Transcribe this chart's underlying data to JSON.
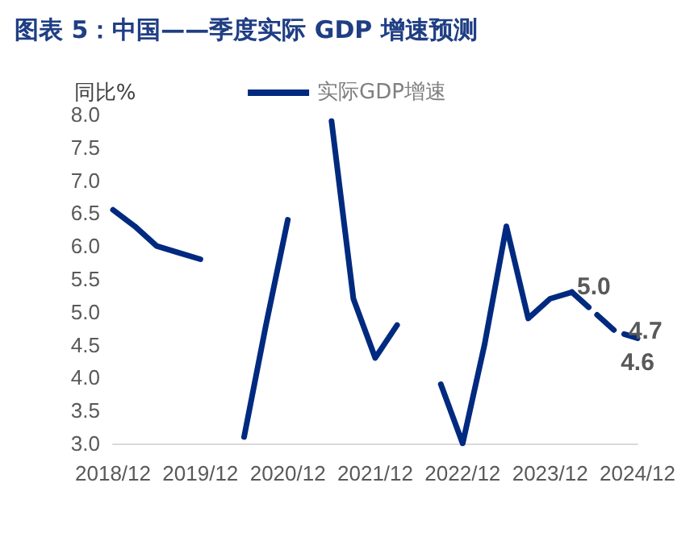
{
  "chart_data": {
    "type": "line",
    "title": "图表 5：中国——季度实际 GDP 增速预测",
    "ylabel": "同比%",
    "categories": [
      "2018/12",
      null,
      null,
      null,
      "2019/12",
      null,
      null,
      null,
      "2020/12",
      null,
      null,
      null,
      "2021/12",
      null,
      null,
      null,
      "2022/12",
      null,
      null,
      null,
      "2023/12",
      null,
      null,
      null,
      "2024/12"
    ],
    "series": [
      {
        "name": "实际GDP增速",
        "color": "#002a7f",
        "line_style": "solid",
        "values": [
          6.55,
          6.3,
          6.0,
          5.9,
          5.8,
          null,
          3.1,
          4.8,
          6.4,
          null,
          7.9,
          5.2,
          4.3,
          4.8,
          null,
          3.9,
          3.0,
          4.5,
          6.3,
          4.9,
          5.2,
          5.3,
          null,
          null,
          null
        ]
      },
      {
        "color": "#002a7f",
        "line_style": "dashed",
        "values": [
          null,
          null,
          null,
          null,
          null,
          null,
          null,
          null,
          null,
          null,
          null,
          null,
          null,
          null,
          null,
          null,
          null,
          null,
          null,
          null,
          null,
          5.3,
          5.0,
          4.7,
          4.6
        ],
        "value_labels": [
          null,
          null,
          null,
          null,
          null,
          null,
          null,
          null,
          null,
          null,
          null,
          null,
          null,
          null,
          null,
          null,
          null,
          null,
          null,
          null,
          null,
          null,
          "5.0",
          "4.7",
          "4.6"
        ]
      }
    ],
    "ylim": [
      3.0,
      8.0
    ],
    "yticks": [
      {
        "value": 3.0,
        "label": "3.0"
      },
      {
        "value": 3.5,
        "label": "3.5"
      },
      {
        "value": 4.0,
        "label": "4.0"
      },
      {
        "value": 4.5,
        "label": "4.5"
      },
      {
        "value": 5.0,
        "label": "5.0"
      },
      {
        "value": 5.5,
        "label": "5.5"
      },
      {
        "value": 6.0,
        "label": "6.0"
      },
      {
        "value": 6.5,
        "label": "6.5"
      },
      {
        "value": 7.0,
        "label": "7.0"
      },
      {
        "value": 7.5,
        "label": "7.5"
      },
      {
        "value": 8.0,
        "label": "8.0"
      }
    ],
    "grid": false,
    "legend": "top",
    "marker": "none"
  }
}
